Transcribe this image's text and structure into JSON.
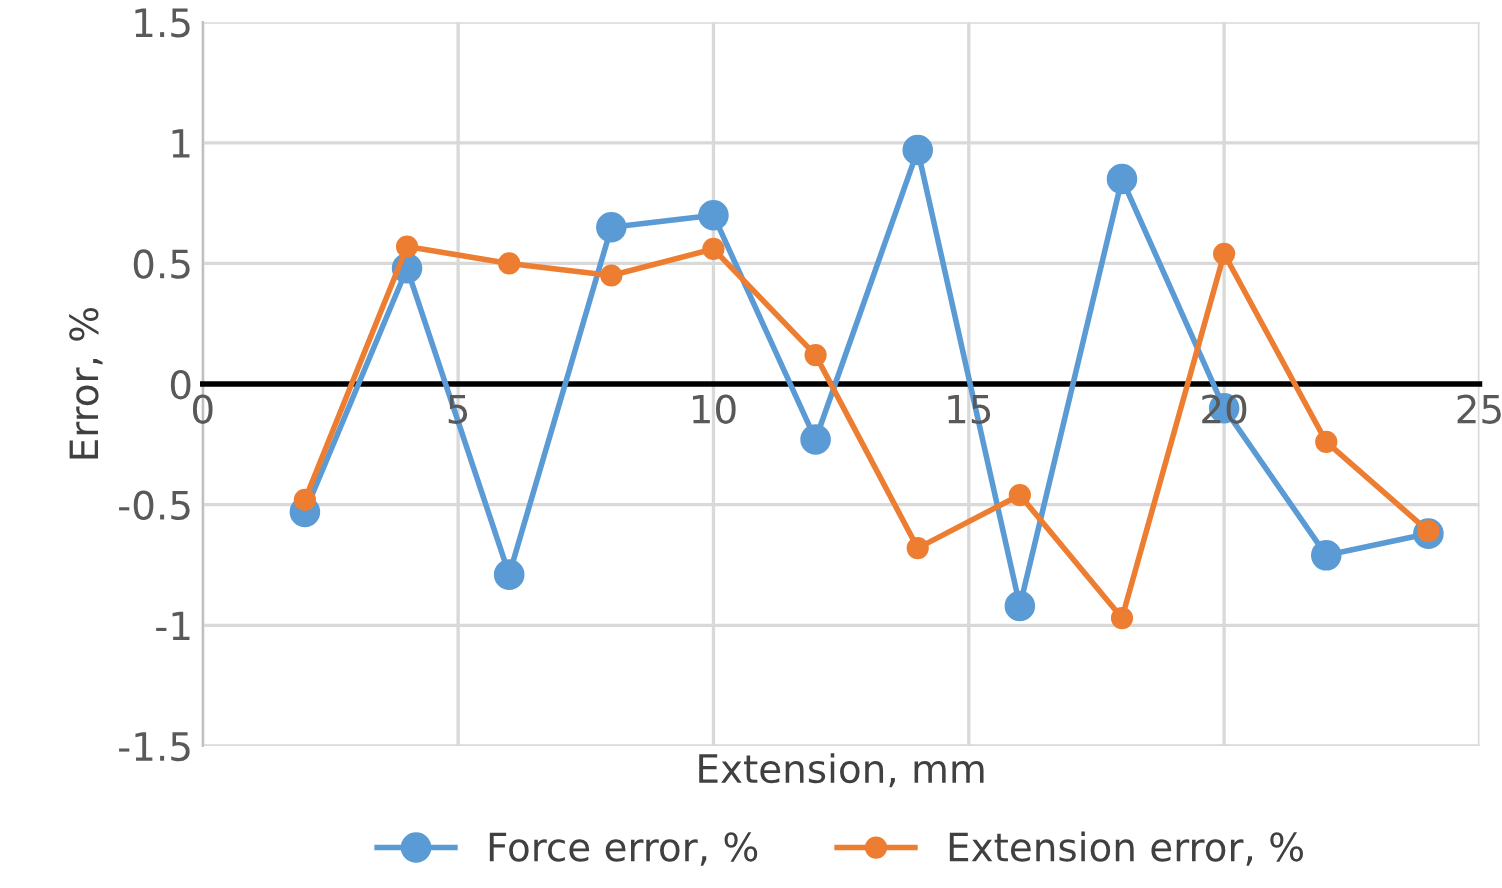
{
  "chart_data": {
    "type": "line",
    "xlabel": "Extension, mm",
    "ylabel": "Error, %",
    "xlim": [
      0,
      25
    ],
    "xticks": [
      0,
      5,
      10,
      15,
      20,
      25
    ],
    "ylim": [
      -1.5,
      1.5
    ],
    "yticks": [
      -1.5,
      -1,
      -0.5,
      0,
      0.5,
      1,
      1.5
    ],
    "grid": true,
    "legend": "bottom",
    "marker": "circle",
    "line_style": "solid",
    "x": [
      2,
      4,
      6,
      8,
      10,
      12,
      14,
      16,
      18,
      20,
      22,
      24
    ],
    "series": [
      {
        "name": "Force error, %",
        "color": "#5b9bd5",
        "values": [
          -0.53,
          0.48,
          -0.79,
          0.65,
          0.7,
          -0.23,
          0.97,
          -0.92,
          0.85,
          -0.1,
          -0.71,
          -0.62
        ]
      },
      {
        "name": "Extension error, %",
        "color": "#ed7d31",
        "values": [
          -0.48,
          0.57,
          0.5,
          0.45,
          0.56,
          0.12,
          -0.68,
          -0.46,
          -0.97,
          0.54,
          -0.24,
          -0.61
        ]
      }
    ]
  }
}
